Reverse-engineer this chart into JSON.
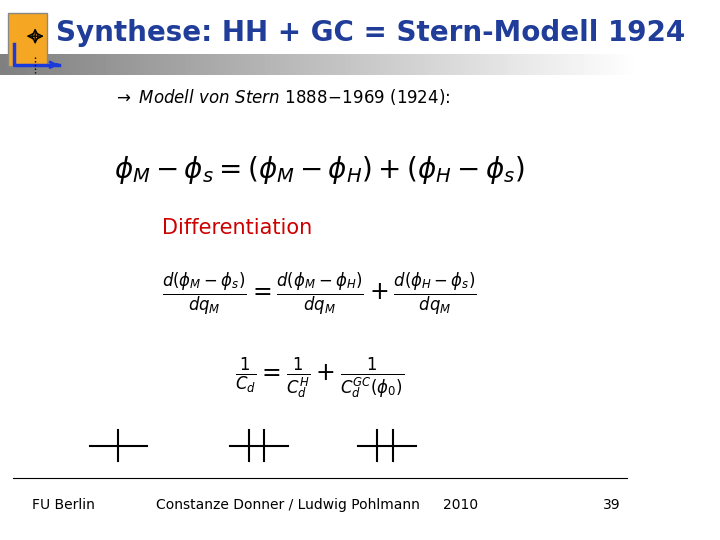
{
  "title": "Synthese: HH + GC = Stern-Modell 1924",
  "title_color": "#1F3D99",
  "title_fontsize": 20,
  "differentiation_label": "Differentiation",
  "diff_color": "#CC0000",
  "footer_left": "FU Berlin",
  "footer_center": "Constanze Donner / Ludwig Pohlmann",
  "footer_year": "2010",
  "footer_page": "39",
  "bg_color": "#FFFFFF",
  "icon_orange": "#F5A623",
  "icon_blue": "#1A3ADB"
}
